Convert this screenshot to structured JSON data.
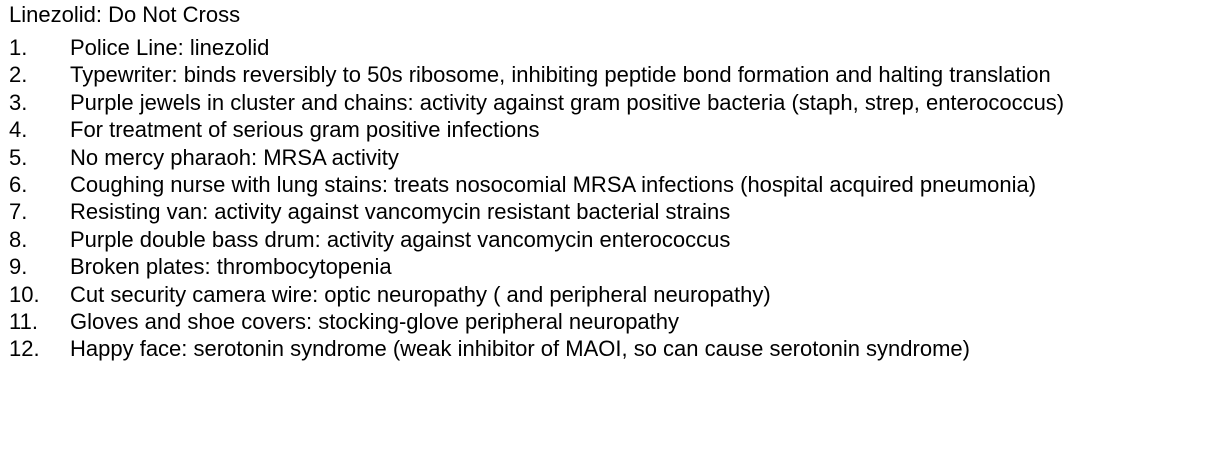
{
  "title": "Linezolid: Do Not Cross",
  "items": [
    {
      "num": "1.",
      "text": "Police Line: linezolid"
    },
    {
      "num": "2.",
      "text": "Typewriter: binds reversibly to 50s ribosome, inhibiting peptide bond formation and halting translation"
    },
    {
      "num": "3.",
      "text": "Purple jewels in cluster and chains: activity against gram positive bacteria (staph, strep, enterococcus)"
    },
    {
      "num": "4.",
      "text": "For treatment of serious gram positive infections"
    },
    {
      "num": "5.",
      "text": "No mercy pharaoh: MRSA activity"
    },
    {
      "num": "6.",
      "text": "Coughing nurse with lung stains: treats nosocomial MRSA infections (hospital acquired pneumonia)"
    },
    {
      "num": "7.",
      "text": "Resisting van: activity against vancomycin resistant bacterial strains"
    },
    {
      "num": "8.",
      "text": "Purple double bass drum: activity against vancomycin enterococcus"
    },
    {
      "num": "9.",
      "text": "Broken plates: thrombocytopenia"
    },
    {
      "num": "10.",
      "text": "Cut security camera wire: optic neuropathy ( and peripheral neuropathy)"
    },
    {
      "num": "11.",
      "text": "Gloves and shoe covers: stocking-glove peripheral neuropathy"
    },
    {
      "num": "12.",
      "text": "Happy face: serotonin syndrome (weak inhibitor of MAOI, so can cause serotonin syndrome)"
    }
  ]
}
